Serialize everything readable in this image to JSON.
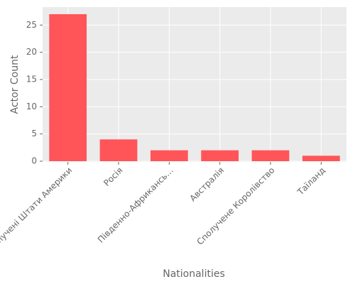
{
  "chart_data": {
    "type": "bar",
    "x_label": "Nationalities",
    "y_label": "Actor Count",
    "categories": [
      "Сполучені Штати Америки",
      "Росія",
      "Південно-Африкансь…",
      "Австралія",
      "Сполучене Королівство",
      "Таїланд"
    ],
    "values": [
      27,
      4,
      2,
      2,
      2,
      1
    ],
    "color": "#ff5559",
    "ylim": [
      -0.13,
      28.3
    ],
    "yticks": [
      0,
      5,
      10,
      15,
      20,
      25
    ],
    "grid": true
  }
}
